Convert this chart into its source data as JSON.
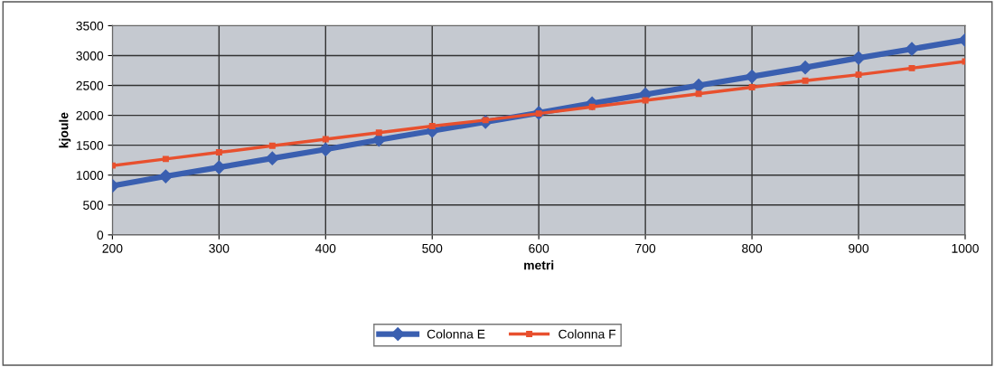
{
  "chart_data": {
    "type": "line",
    "xlabel": "metri",
    "ylabel": "kjoule",
    "x": [
      200,
      250,
      300,
      350,
      400,
      450,
      500,
      550,
      600,
      650,
      700,
      750,
      800,
      850,
      900,
      950,
      1000
    ],
    "series": [
      {
        "name": "Colonna E",
        "color": "#3a5fb0",
        "marker": "diamond",
        "values": [
          820,
          980,
          1130,
          1280,
          1430,
          1590,
          1740,
          1890,
          2040,
          2200,
          2350,
          2500,
          2650,
          2800,
          2960,
          3110,
          3260
        ]
      },
      {
        "name": "Colonna F",
        "color": "#e8502e",
        "marker": "square",
        "values": [
          1160,
          1270,
          1380,
          1490,
          1600,
          1710,
          1820,
          1920,
          2030,
          2140,
          2250,
          2360,
          2470,
          2580,
          2680,
          2790,
          2900
        ]
      }
    ],
    "xlim": [
      200,
      1000
    ],
    "xticks": [
      200,
      300,
      400,
      500,
      600,
      700,
      800,
      900,
      1000
    ],
    "ylim": [
      0,
      3500
    ],
    "yticks": [
      0,
      500,
      1000,
      1500,
      2000,
      2500,
      3000,
      3500
    ],
    "grid": true,
    "legend": "bottom"
  }
}
